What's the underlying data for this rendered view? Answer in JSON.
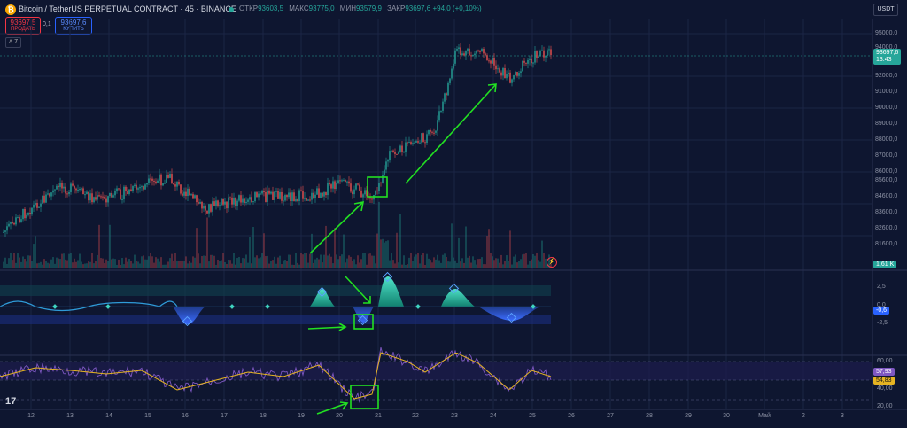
{
  "header": {
    "symbol_title": "Bitcoin / TetherUS PERPETUAL CONTRACT · 45 · BINANCE",
    "ohlc": [
      {
        "label": "ОТКР",
        "value": "93603,5"
      },
      {
        "label": "МАКС",
        "value": "93775,0"
      },
      {
        "label": "МИН",
        "value": "93579,9"
      },
      {
        "label": "ЗАКР",
        "value": "93697,6 +94,0 (+0,10%)"
      }
    ],
    "currency": "USDT"
  },
  "trade": {
    "sell_price": "93697,5",
    "sell_label": "ПРОДАТЬ",
    "spread": "0,1",
    "buy_price": "93697,6",
    "buy_label": "КУПИТЬ",
    "indicators_count": "7"
  },
  "price_axis": [
    "95000,0",
    "94000,0",
    "92000,0",
    "91000,0",
    "90000,0",
    "89000,0",
    "88000,0",
    "87000,0",
    "86000,0",
    "85600,0",
    "84600,0",
    "83600,0",
    "82600,0",
    "81600,0"
  ],
  "price_badge": {
    "price": "93697,6",
    "timer": "13:43",
    "color": "#26a69a"
  },
  "volume_badge": "1,61 K",
  "oscillator_axis": [
    "2,5",
    "0,0",
    "-2,5"
  ],
  "oscillator_badge": "-0,6",
  "rsi_axis": [
    "60,00",
    "40,00",
    "20,00"
  ],
  "rsi_badges": [
    "57,93",
    "54,83"
  ],
  "time_axis": [
    "12",
    "13",
    "14",
    "15",
    "16",
    "17",
    "18",
    "19",
    "20",
    "21",
    "22",
    "23",
    "24",
    "25",
    "26",
    "27",
    "28",
    "29",
    "30",
    "Май",
    "2",
    "3"
  ],
  "icons": {
    "logo": "bitcoin-logo-icon",
    "bolt": "lightning-icon",
    "tv": "tradingview-logo-icon"
  },
  "colors": {
    "up": "#26a69a",
    "down": "#ef5350",
    "arrow": "#22e022",
    "rsi": "#7e57c2",
    "rsi_ma": "#e6b422"
  }
}
